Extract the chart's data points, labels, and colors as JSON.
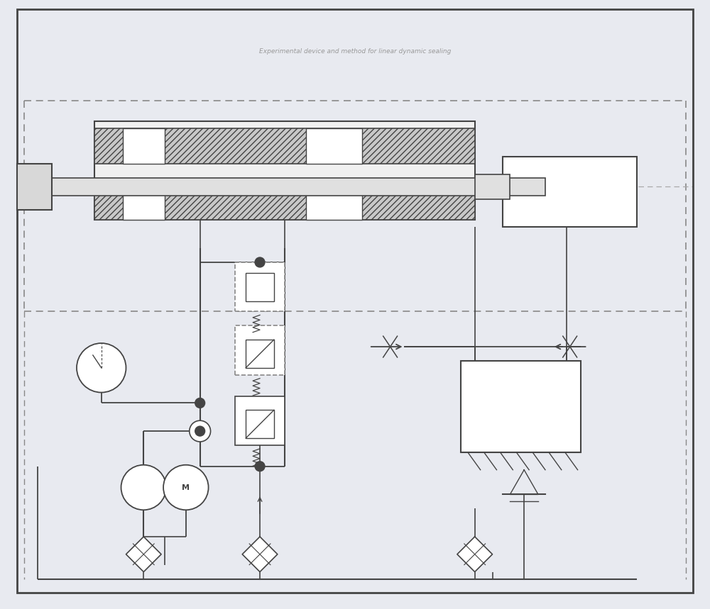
{
  "bg_color": "#e8eaf0",
  "line_color": "#444444",
  "dashed_color": "#888888",
  "fig_width": 10.0,
  "fig_height": 8.59
}
